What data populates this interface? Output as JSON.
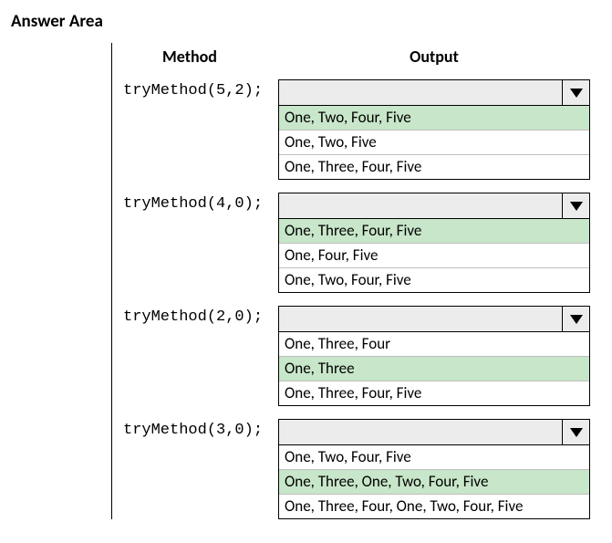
{
  "title": "Answer Area",
  "headers": {
    "method": "Method",
    "output": "Output"
  },
  "highlight_color": "#c8e6c9",
  "border_color": "#000000",
  "dropdown_bg": "#ececec",
  "rows": [
    {
      "method": "tryMethod(5,2);",
      "selected_index": 0,
      "options": [
        "One, Two, Four, Five",
        "One, Two, Five",
        "One, Three, Four, Five"
      ]
    },
    {
      "method": "tryMethod(4,0);",
      "selected_index": 0,
      "options": [
        "One, Three, Four, Five",
        "One, Four, Five",
        "One, Two, Four, Five"
      ]
    },
    {
      "method": "tryMethod(2,0);",
      "selected_index": 1,
      "options": [
        "One, Three, Four",
        "One, Three",
        "One, Three, Four, Five"
      ]
    },
    {
      "method": "tryMethod(3,0);",
      "selected_index": 1,
      "options": [
        "One, Two, Four, Five",
        "One, Three, One, Two, Four, Five",
        "One, Three, Four, One, Two, Four, Five"
      ]
    }
  ]
}
